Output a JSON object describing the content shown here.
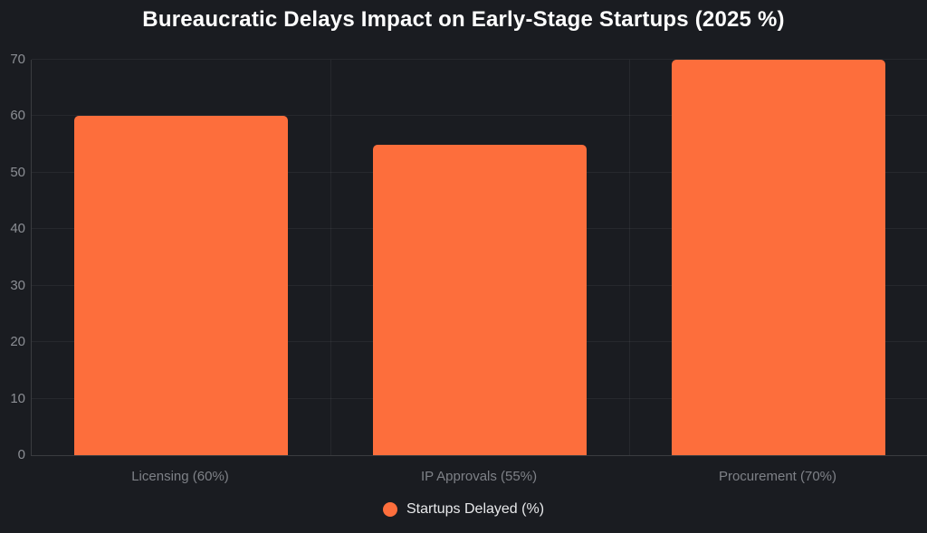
{
  "page": {
    "background_color": "#1a1c21"
  },
  "chart_data": {
    "type": "bar",
    "title": "Bureaucratic Delays Impact on Early-Stage Startups (2025 %)",
    "categories": [
      "Licensing (60%)",
      "IP Approvals (55%)",
      "Procurement (70%)"
    ],
    "series": [
      {
        "name": "Startups Delayed (%)",
        "values": [
          60,
          55,
          70
        ],
        "color": "#fd6e3c"
      }
    ],
    "xlabel": "",
    "ylabel": "",
    "ylim": [
      0,
      70
    ],
    "yticks": [
      0,
      10,
      20,
      30,
      40,
      50,
      60,
      70
    ],
    "grid": true,
    "legend_position": "bottom"
  },
  "colors": {
    "bar_fill": "#fd6e3c",
    "background": "#1a1c21",
    "title_text": "#ffffff",
    "tick_text": "#8b8e94",
    "category_text": "#7e8187",
    "legend_text": "#e8e9eb",
    "gridline": "rgba(255,255,255,0.055)",
    "axis_line": "rgba(255,255,255,0.14)"
  }
}
